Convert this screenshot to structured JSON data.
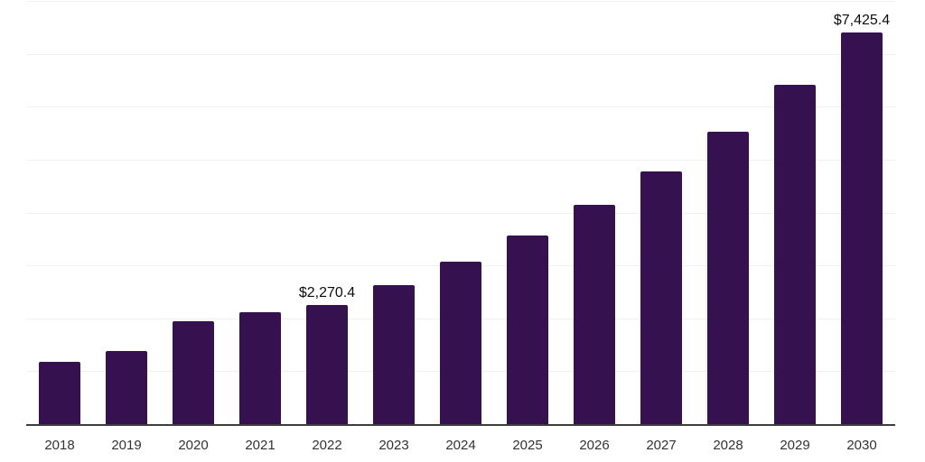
{
  "colors": {
    "background": "#ffffff",
    "bar": "#35114F",
    "axis_line": "#3d3d3d",
    "gridline": "#f1f1f1",
    "tick_label": "#333333",
    "data_label": "#0d0d0d"
  },
  "chart_data": {
    "type": "bar",
    "title": "",
    "xlabel": "",
    "ylabel": "",
    "categories": [
      "2018",
      "2019",
      "2020",
      "2021",
      "2022",
      "2023",
      "2024",
      "2025",
      "2026",
      "2027",
      "2028",
      "2029",
      "2030"
    ],
    "values": [
      1190,
      1400,
      1960,
      2130,
      2270.4,
      2650,
      3080,
      3590,
      4160,
      4800,
      5550,
      6430,
      7425.4
    ],
    "data_labels": {
      "2022": "$2,270.4",
      "2030": "$7,425.4"
    },
    "ylim": [
      0,
      8000
    ],
    "gridline_interval": 1000,
    "grid": "horizontal",
    "legend": "none",
    "bar_color": "#35114F"
  }
}
